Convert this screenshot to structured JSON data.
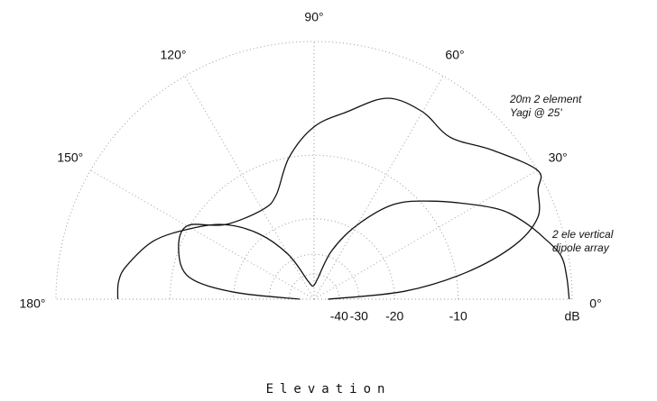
{
  "chart_data": {
    "type": "polar",
    "title": "Elevation",
    "radial_scale": "arrl-log",
    "theta_range": [
      0,
      180
    ],
    "thetaticks": [
      {
        "value": 0,
        "label": "0°"
      },
      {
        "value": 30,
        "label": "30°"
      },
      {
        "value": 60,
        "label": "60°"
      },
      {
        "value": 90,
        "label": "90°"
      },
      {
        "value": 120,
        "label": "120°"
      },
      {
        "value": 150,
        "label": "150°"
      },
      {
        "value": 180,
        "label": "180°"
      }
    ],
    "rticks": [
      -40,
      -30,
      -20,
      -10,
      {
        "value": 0,
        "label": "dB"
      }
    ],
    "grid": true,
    "series": [
      {
        "label": [
          "20m 2 element",
          "Yagi @ 25'"
        ],
        "color": "#111111",
        "theta": [
          0,
          5,
          10,
          15,
          20,
          26,
          30,
          40,
          50,
          60,
          70,
          80,
          90,
          100,
          110,
          120,
          140,
          150,
          160,
          170,
          175,
          180
        ],
        "values": [
          -50,
          -18,
          -8.8,
          -3.8,
          -1.4,
          -0.6,
          0,
          -1.8,
          -3.4,
          -3.0,
          -3.2,
          -5.2,
          -6.9,
          -10,
          -14.5,
          -15.7,
          -13.7,
          -9.7,
          -10,
          -12.2,
          -20,
          -50
        ]
      },
      {
        "label": [
          "2 ele vertical",
          "dipole array"
        ],
        "color": "#111111",
        "theta": [
          0,
          5,
          10,
          15,
          20,
          25,
          30,
          40,
          50,
          60,
          70,
          80,
          90,
          100,
          110,
          120,
          130,
          140,
          150,
          160,
          170,
          175,
          180
        ],
        "values": [
          -0.2,
          -0.3,
          -0.5,
          -1.4,
          -2.4,
          -3.6,
          -5.4,
          -9,
          -12.6,
          -19,
          -27.6,
          -43,
          -50,
          -50,
          -43,
          -27.6,
          -19,
          -13.7,
          -10.3,
          -7.1,
          -5.2,
          -4.7,
          -4.7
        ]
      }
    ]
  }
}
